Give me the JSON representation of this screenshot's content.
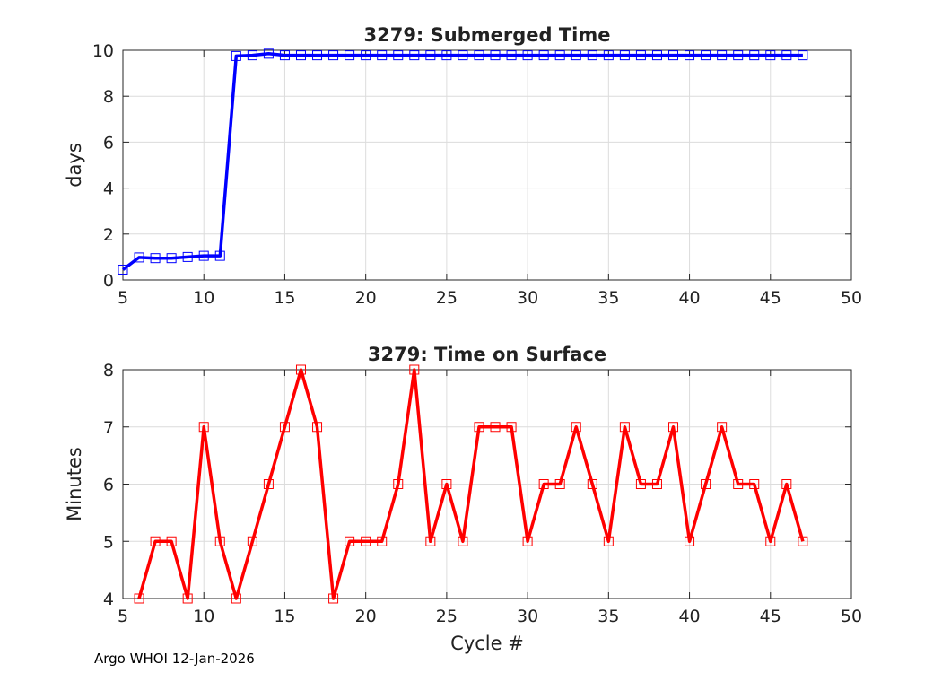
{
  "footer": {
    "text": "Argo WHOI 12-Jan-2026"
  },
  "chart_data": [
    {
      "type": "line",
      "title": "3279: Submerged Time",
      "xlabel": "",
      "ylabel": "days",
      "xlim": [
        5,
        50
      ],
      "ylim": [
        0,
        10
      ],
      "xticks": [
        5,
        10,
        15,
        20,
        25,
        30,
        35,
        40,
        45,
        50
      ],
      "yticks": [
        0,
        2,
        4,
        6,
        8,
        10
      ],
      "grid": true,
      "series": [
        {
          "name": "Submerged Time",
          "color": "#0000ff",
          "marker": "square",
          "x": [
            5,
            6,
            7,
            8,
            9,
            10,
            11,
            12,
            13,
            14,
            15,
            16,
            17,
            18,
            19,
            20,
            21,
            22,
            23,
            24,
            25,
            26,
            27,
            28,
            29,
            30,
            31,
            32,
            33,
            34,
            35,
            36,
            37,
            38,
            39,
            40,
            41,
            42,
            43,
            44,
            45,
            46,
            47
          ],
          "y": [
            0.45,
            0.98,
            0.95,
            0.95,
            1.0,
            1.05,
            1.05,
            9.75,
            9.78,
            9.85,
            9.78,
            9.78,
            9.78,
            9.78,
            9.78,
            9.78,
            9.78,
            9.78,
            9.78,
            9.78,
            9.78,
            9.78,
            9.78,
            9.78,
            9.78,
            9.78,
            9.78,
            9.78,
            9.78,
            9.78,
            9.78,
            9.78,
            9.78,
            9.78,
            9.78,
            9.78,
            9.78,
            9.78,
            9.78,
            9.78,
            9.78,
            9.78,
            9.78
          ]
        }
      ]
    },
    {
      "type": "line",
      "title": "3279: Time on Surface",
      "xlabel": "Cycle #",
      "ylabel": "Minutes",
      "xlim": [
        5,
        50
      ],
      "ylim": [
        4,
        8
      ],
      "xticks": [
        5,
        10,
        15,
        20,
        25,
        30,
        35,
        40,
        45,
        50
      ],
      "yticks": [
        4,
        5,
        6,
        7,
        8
      ],
      "grid": true,
      "series": [
        {
          "name": "Time on Surface",
          "color": "#ff0000",
          "marker": "square",
          "x": [
            6,
            7,
            8,
            9,
            10,
            11,
            12,
            13,
            14,
            15,
            16,
            17,
            18,
            19,
            20,
            21,
            22,
            23,
            24,
            25,
            26,
            27,
            28,
            29,
            30,
            31,
            32,
            33,
            34,
            35,
            36,
            37,
            38,
            39,
            40,
            41,
            42,
            43,
            44,
            45,
            46,
            47
          ],
          "y": [
            4,
            5,
            5,
            4,
            7,
            5,
            4,
            5,
            6,
            7,
            8,
            7,
            4,
            5,
            5,
            5,
            6,
            8,
            5,
            6,
            5,
            7,
            7,
            7,
            5,
            6,
            6,
            7,
            6,
            5,
            7,
            6,
            6,
            7,
            5,
            6,
            7,
            6,
            6,
            5,
            6,
            5
          ]
        }
      ]
    }
  ]
}
